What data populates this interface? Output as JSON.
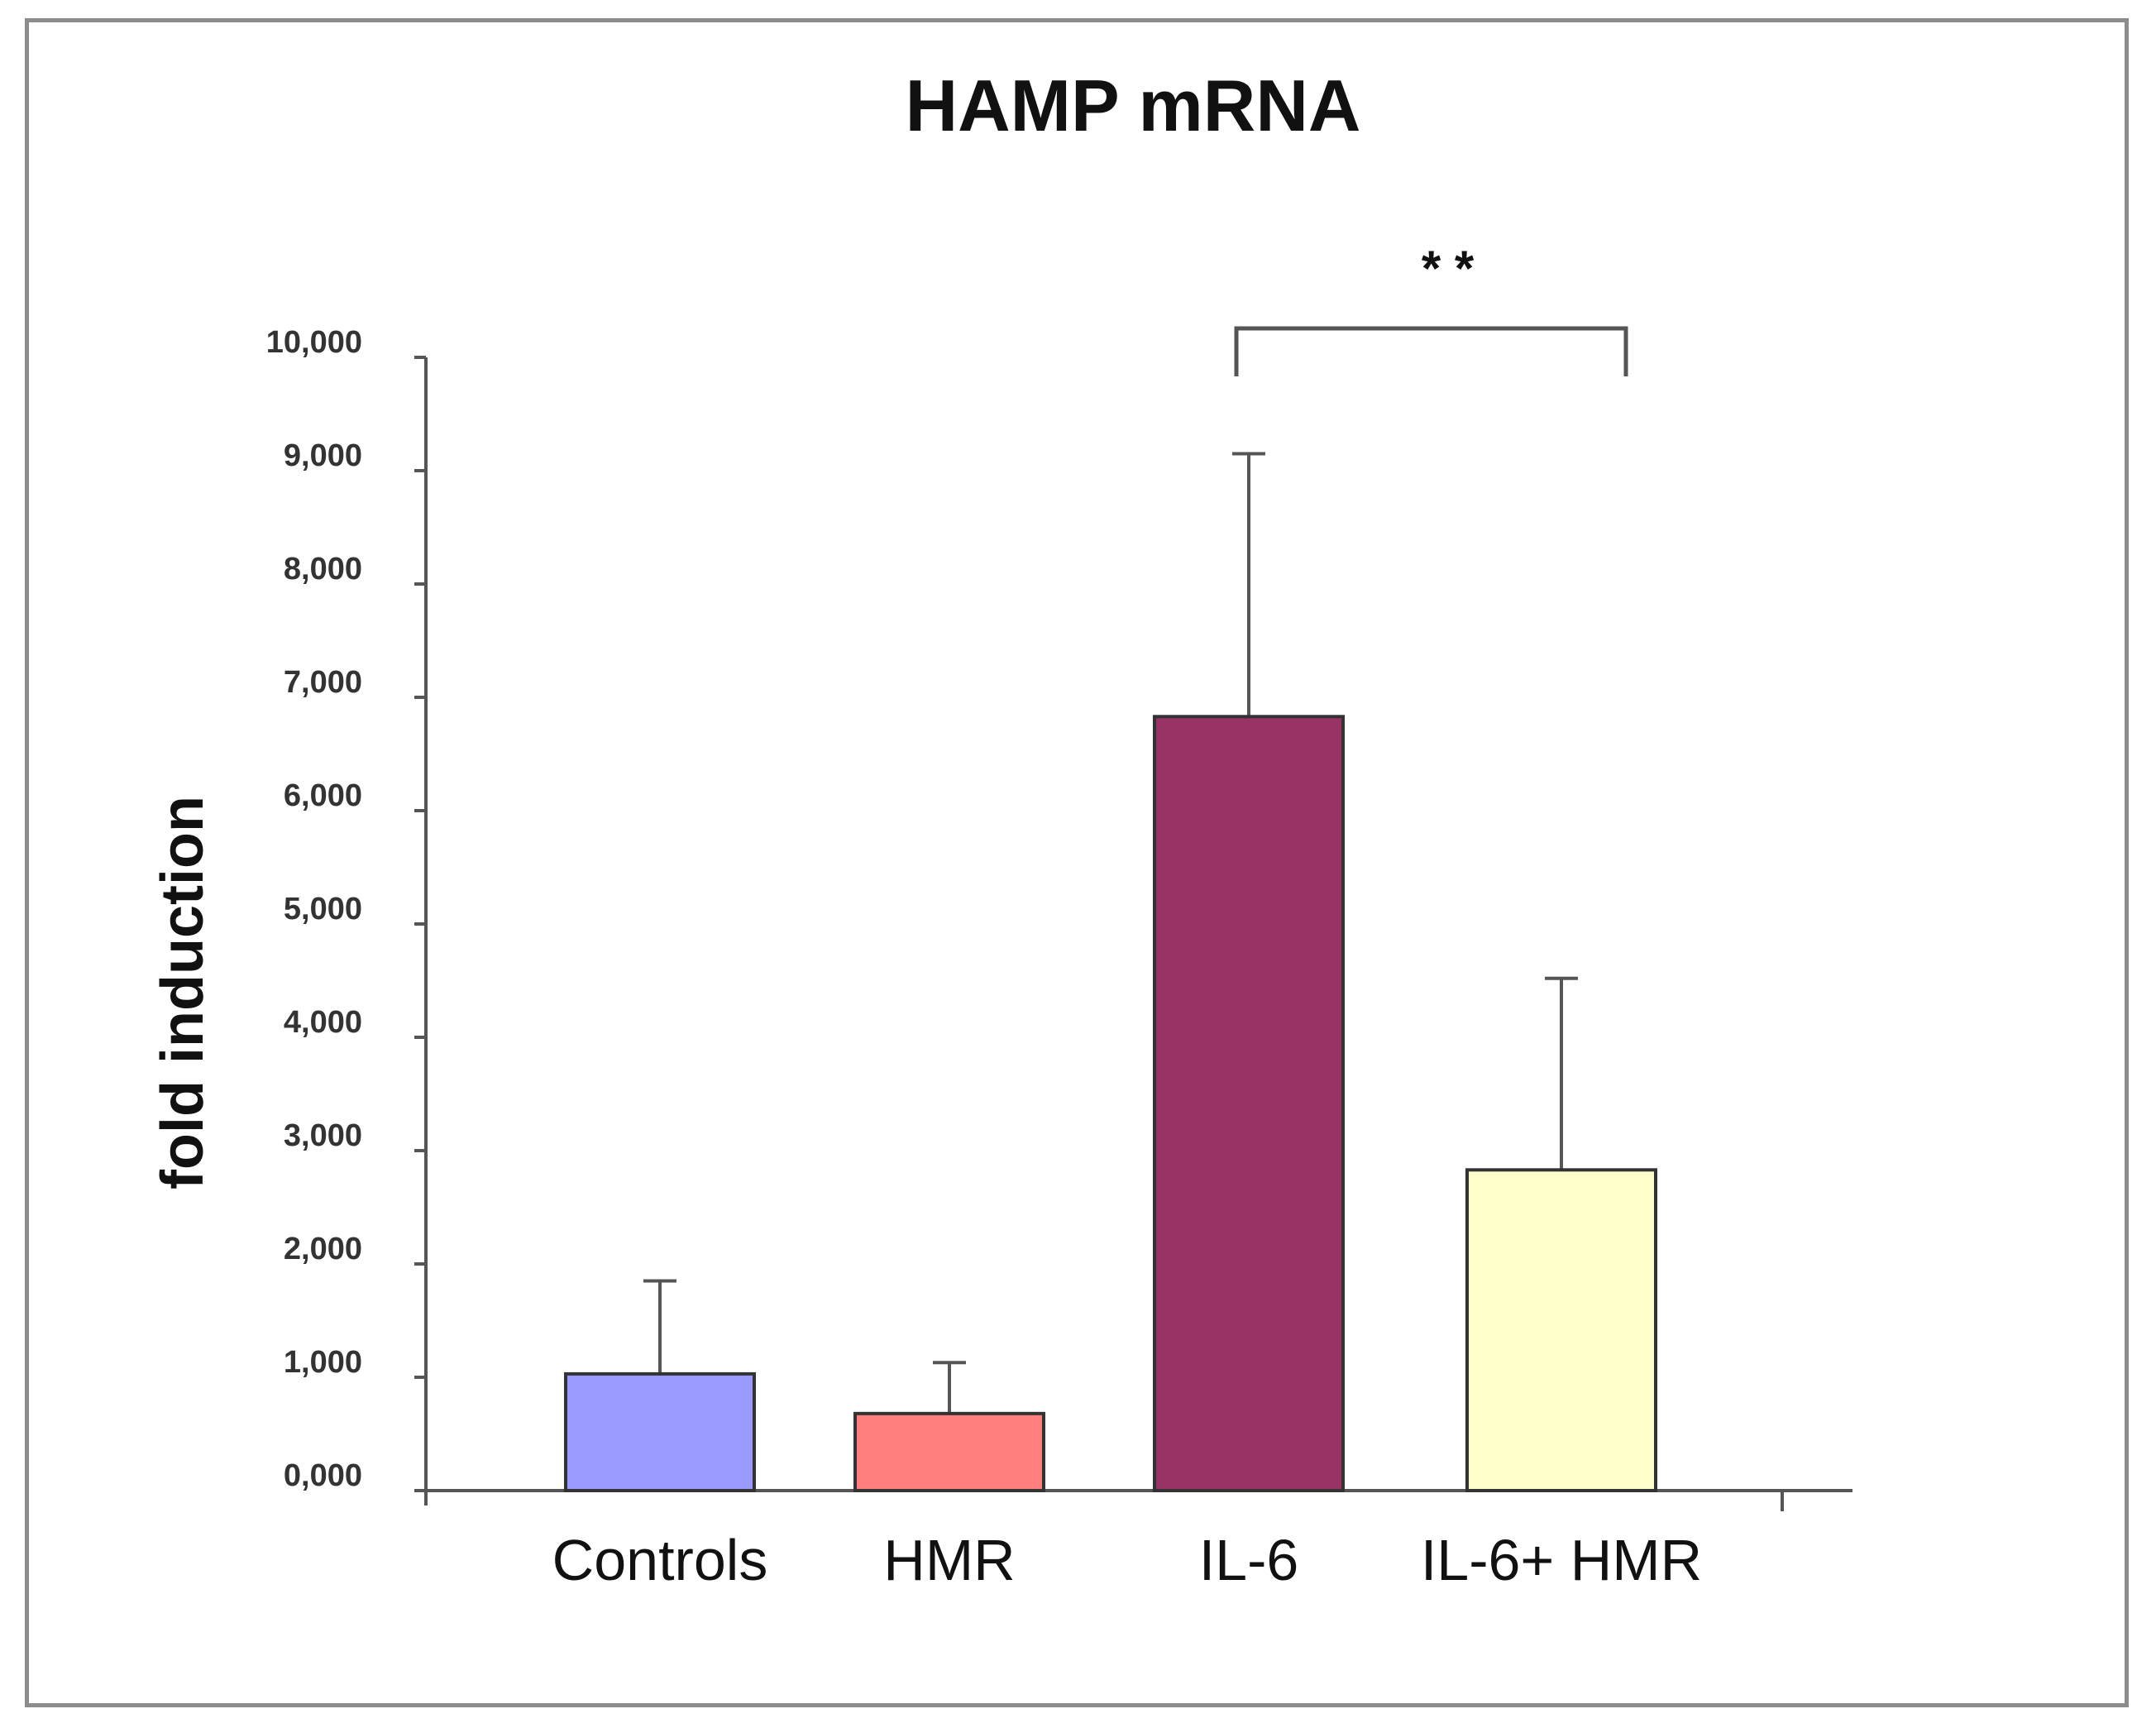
{
  "chart_data": {
    "type": "bar",
    "title": "HAMP mRNA",
    "xlabel": "",
    "ylabel": "fold induction",
    "ylim": [
      0,
      10000
    ],
    "categories": [
      "Controls",
      "HMR",
      "IL-6",
      "IL-6+ HMR"
    ],
    "values": [
      1030,
      680,
      6830,
      2830
    ],
    "errors": [
      820,
      450,
      2320,
      1690
    ],
    "colors": [
      "#9999ff",
      "#ff7f7f",
      "#993366",
      "#ffffcc"
    ],
    "ytick_values": [
      0,
      1000,
      2000,
      3000,
      4000,
      5000,
      6000,
      7000,
      8000,
      9000,
      10000
    ],
    "ytick_labels": [
      "0,000",
      "1,000",
      "2,000",
      "3,000",
      "4,000",
      "5,000",
      "6,000",
      "7,000",
      "8,000",
      "9,000",
      "10,000"
    ],
    "grid": false,
    "legend": "none",
    "significance": {
      "from_category": "IL-6",
      "to_category": "IL-6+ HMR",
      "label": "* *"
    }
  }
}
